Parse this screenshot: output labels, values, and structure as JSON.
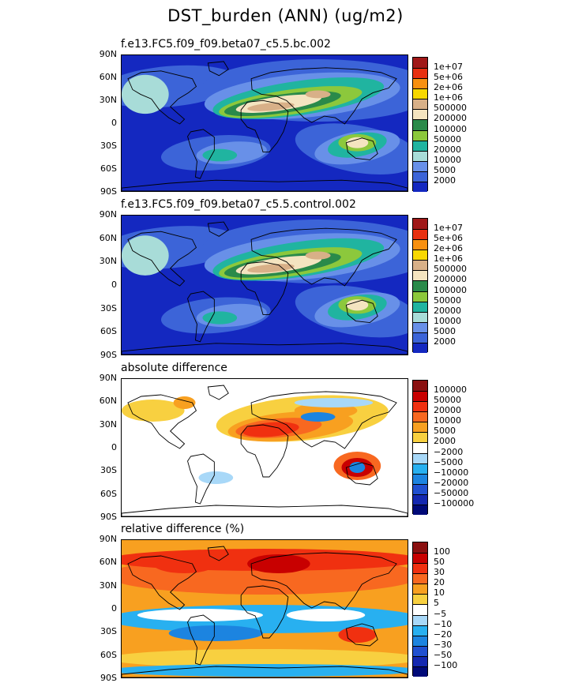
{
  "title": "DST_burden (ANN) (ug/m2)",
  "lat_ticks": [
    "90N",
    "60N",
    "30N",
    "0",
    "30S",
    "60S",
    "90S"
  ],
  "chart_data": [
    {
      "type": "heatmap",
      "title": "f.e13.FC5.f09_f09.beta07_c5.5.bc.002",
      "colorbar": {
        "labels": [
          "1e+07",
          "5e+06",
          "2e+06",
          "1e+06",
          "500000",
          "200000",
          "100000",
          "50000",
          "20000",
          "10000",
          "5000",
          "2000"
        ],
        "colors": [
          "#a01818",
          "#e83010",
          "#f89010",
          "#f8d800",
          "#d8b088",
          "#f4e4c0",
          "#2a8a4a",
          "#8cc83c",
          "#20b4a0",
          "#a8dcd8",
          "#6890e8",
          "#3c64d8",
          "#1428c0"
        ]
      }
    },
    {
      "type": "heatmap",
      "title": "f.e13.FC5.f09_f09.beta07_c5.5.control.002",
      "colorbar": {
        "labels": [
          "1e+07",
          "5e+06",
          "2e+06",
          "1e+06",
          "500000",
          "200000",
          "100000",
          "50000",
          "20000",
          "10000",
          "5000",
          "2000"
        ],
        "colors": [
          "#a01818",
          "#e83010",
          "#f89010",
          "#f8d800",
          "#d8b088",
          "#f4e4c0",
          "#2a8a4a",
          "#8cc83c",
          "#20b4a0",
          "#a8dcd8",
          "#6890e8",
          "#3c64d8",
          "#1428c0"
        ]
      }
    },
    {
      "type": "heatmap",
      "title": "absolute difference",
      "colorbar": {
        "labels": [
          "100000",
          "50000",
          "20000",
          "10000",
          "5000",
          "2000",
          "−2000",
          "−5000",
          "−10000",
          "−20000",
          "−50000",
          "−100000"
        ],
        "colors": [
          "#8a1010",
          "#c80000",
          "#f03010",
          "#f86820",
          "#f8a020",
          "#f8d040",
          "#ffffff",
          "#a8d8f8",
          "#28b0f0",
          "#1c84e0",
          "#2050d0",
          "#1428b0",
          "#000a78"
        ]
      }
    },
    {
      "type": "heatmap",
      "title": "relative difference (%)",
      "colorbar": {
        "labels": [
          "100",
          "50",
          "30",
          "20",
          "10",
          "5",
          "−5",
          "−10",
          "−20",
          "−30",
          "−50",
          "−100"
        ],
        "colors": [
          "#8a1010",
          "#c80000",
          "#f03010",
          "#f86820",
          "#f8a020",
          "#f8d040",
          "#ffffff",
          "#a8d8f8",
          "#28b0f0",
          "#1c84e0",
          "#2050d0",
          "#1428b0",
          "#000a78"
        ]
      }
    }
  ]
}
